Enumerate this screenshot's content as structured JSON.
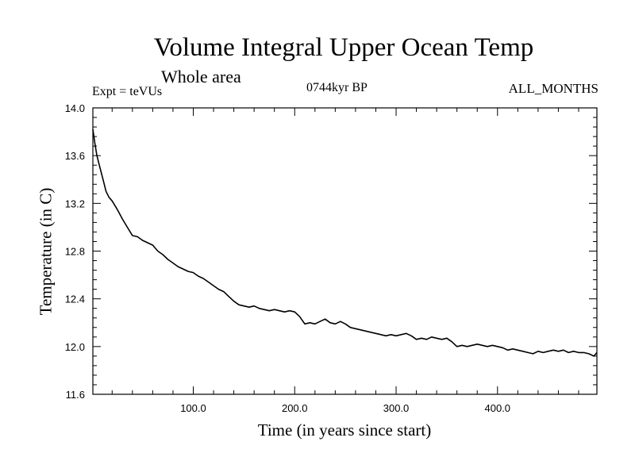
{
  "header": {
    "title": "Volume Integral Upper Ocean Temp",
    "subtitle": "Whole area",
    "expt": "Expt = teVUs",
    "era": "0744kyr BP",
    "months": "ALL_MONTHS"
  },
  "chart_data": {
    "type": "line",
    "title": "Volume Integral Upper Ocean Temp",
    "subtitle": "Whole area",
    "xlabel": "Time (in years since start)",
    "ylabel": "Temperature (in C)",
    "xlim": [
      1,
      498
    ],
    "ylim": [
      11.6,
      14.0
    ],
    "x_ticks": [
      100,
      200,
      300,
      400
    ],
    "x_tick_labels": [
      "100.0",
      "200.0",
      "300.0",
      "400.0"
    ],
    "y_ticks": [
      11.6,
      12.0,
      12.4,
      12.8,
      13.2,
      13.6,
      14.0
    ],
    "y_tick_labels": [
      "11.6",
      "12.0",
      "12.4",
      "12.8",
      "13.2",
      "13.6",
      "14.0"
    ],
    "grid": false,
    "series": [
      {
        "values_x": [
          1,
          3,
          5,
          8,
          11,
          14,
          17,
          20,
          25,
          30,
          35,
          40,
          45,
          50,
          55,
          60,
          65,
          70,
          75,
          80,
          85,
          90,
          95,
          100,
          105,
          110,
          115,
          120,
          125,
          130,
          135,
          140,
          145,
          150,
          155,
          160,
          165,
          170,
          175,
          180,
          185,
          190,
          195,
          200,
          205,
          210,
          215,
          220,
          225,
          230,
          235,
          240,
          245,
          250,
          255,
          260,
          265,
          270,
          275,
          280,
          285,
          290,
          295,
          300,
          305,
          310,
          315,
          320,
          325,
          330,
          335,
          340,
          345,
          350,
          355,
          360,
          365,
          370,
          375,
          380,
          385,
          390,
          395,
          400,
          405,
          410,
          415,
          420,
          425,
          430,
          435,
          440,
          445,
          450,
          455,
          460,
          465,
          470,
          475,
          480,
          485,
          490,
          495,
          498
        ],
        "values_y": [
          13.82,
          13.7,
          13.6,
          13.5,
          13.4,
          13.3,
          13.25,
          13.22,
          13.15,
          13.07,
          13.0,
          12.93,
          12.92,
          12.89,
          12.87,
          12.85,
          12.8,
          12.77,
          12.73,
          12.7,
          12.67,
          12.65,
          12.63,
          12.62,
          12.59,
          12.57,
          12.54,
          12.51,
          12.48,
          12.46,
          12.42,
          12.38,
          12.35,
          12.34,
          12.33,
          12.34,
          12.32,
          12.31,
          12.3,
          12.31,
          12.3,
          12.29,
          12.3,
          12.29,
          12.25,
          12.19,
          12.2,
          12.19,
          12.21,
          12.23,
          12.2,
          12.19,
          12.21,
          12.19,
          12.16,
          12.15,
          12.14,
          12.13,
          12.12,
          12.11,
          12.1,
          12.09,
          12.1,
          12.09,
          12.1,
          12.11,
          12.09,
          12.06,
          12.07,
          12.06,
          12.08,
          12.07,
          12.06,
          12.07,
          12.04,
          12.0,
          12.01,
          12.0,
          12.01,
          12.02,
          12.01,
          12.0,
          12.01,
          12.0,
          11.99,
          11.97,
          11.98,
          11.97,
          11.96,
          11.95,
          11.94,
          11.96,
          11.95,
          11.96,
          11.97,
          11.96,
          11.97,
          11.95,
          11.96,
          11.95,
          11.95,
          11.94,
          11.92,
          11.95
        ]
      }
    ]
  }
}
